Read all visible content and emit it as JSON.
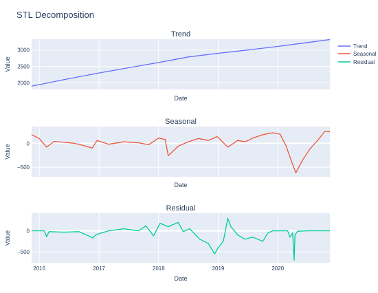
{
  "figure": {
    "title": "STL Decomposition"
  },
  "legend": {
    "placement": "top-right",
    "entries": [
      {
        "name": "Trend",
        "color": "#636efa"
      },
      {
        "name": "Seasonal",
        "color": "#ef553b"
      },
      {
        "name": "Residual",
        "color": "#00cc96"
      }
    ]
  },
  "chart_data": [
    {
      "type": "line",
      "title": "Trend",
      "xlabel": "Date",
      "ylabel": "Value",
      "xlim": [
        "2015-11-15",
        "2020-11-15"
      ],
      "ylim": [
        1800,
        3330
      ],
      "yticks": [
        2000,
        2500,
        3000
      ],
      "ytick_labels": [
        "2000",
        "2500",
        "3000"
      ],
      "grid": true,
      "series": [
        {
          "name": "Trend",
          "color": "#636efa",
          "x": [
            "2015-11-15",
            "2016-06-01",
            "2017-01-01",
            "2017-07-01",
            "2018-01-01",
            "2018-07-01",
            "2019-01-01",
            "2019-07-01",
            "2020-01-01",
            "2020-07-01",
            "2020-11-15"
          ],
          "y": [
            1900,
            2100,
            2300,
            2460,
            2620,
            2790,
            2900,
            3000,
            3110,
            3230,
            3320
          ]
        }
      ]
    },
    {
      "type": "line",
      "title": "Seasonal",
      "xlabel": "Date",
      "ylabel": "Value",
      "xlim": [
        "2015-11-15",
        "2020-11-15"
      ],
      "ylim": [
        -700,
        350
      ],
      "yticks": [
        -500,
        0
      ],
      "ytick_labels": [
        "−500",
        "0"
      ],
      "grid": true,
      "series": [
        {
          "name": "Seasonal",
          "color": "#ef553b",
          "x": [
            "2015-11-15",
            "2016-01-01",
            "2016-02-15",
            "2016-04-01",
            "2016-06-01",
            "2016-08-01",
            "2016-10-01",
            "2016-11-20",
            "2016-12-20",
            "2017-03-01",
            "2017-06-01",
            "2017-09-01",
            "2017-11-01",
            "2018-01-01",
            "2018-02-10",
            "2018-03-01",
            "2018-05-01",
            "2018-07-01",
            "2018-09-01",
            "2018-11-01",
            "2018-12-26",
            "2019-03-01",
            "2019-05-01",
            "2019-06-15",
            "2019-08-01",
            "2019-10-01",
            "2019-12-01",
            "2020-01-15",
            "2020-02-20",
            "2020-03-20",
            "2020-04-20",
            "2020-06-01",
            "2020-07-15",
            "2020-09-01",
            "2020-10-15",
            "2020-11-15"
          ],
          "y": [
            180,
            100,
            -80,
            40,
            20,
            0,
            -50,
            -100,
            60,
            -20,
            30,
            10,
            -30,
            110,
            80,
            -260,
            -60,
            30,
            100,
            60,
            140,
            -80,
            60,
            30,
            110,
            180,
            220,
            190,
            -50,
            -330,
            -620,
            -350,
            -120,
            60,
            250,
            240
          ]
        }
      ]
    },
    {
      "type": "line",
      "title": "Residual",
      "xlabel": "Date",
      "ylabel": "Value",
      "xlim": [
        "2015-11-15",
        "2020-11-15"
      ],
      "ylim": [
        -760,
        420
      ],
      "yticks": [
        -500,
        0
      ],
      "ytick_labels": [
        "−500",
        "0"
      ],
      "xticks": [
        "2016-01-01",
        "2017-01-01",
        "2018-01-01",
        "2019-01-01",
        "2020-01-01"
      ],
      "xtick_labels": [
        "2016",
        "2017",
        "2018",
        "2019",
        "2020"
      ],
      "grid": true,
      "series": [
        {
          "name": "Residual",
          "color": "#00cc96",
          "x": [
            "2015-11-15",
            "2016-02-01",
            "2016-02-15",
            "2016-03-01",
            "2016-06-01",
            "2016-09-01",
            "2016-11-25",
            "2016-12-10",
            "2017-01-15",
            "2017-03-01",
            "2017-06-01",
            "2017-09-01",
            "2017-10-15",
            "2017-12-01",
            "2018-01-10",
            "2018-03-01",
            "2018-05-01",
            "2018-06-01",
            "2018-07-10",
            "2018-09-10",
            "2018-11-01",
            "2018-12-10",
            "2019-01-01",
            "2019-02-01",
            "2019-03-01",
            "2019-03-20",
            "2019-05-01",
            "2019-06-15",
            "2019-08-01",
            "2019-10-01",
            "2019-11-01",
            "2019-12-01",
            "2020-02-01",
            "2020-03-01",
            "2020-03-15",
            "2020-04-01",
            "2020-04-10",
            "2020-04-15",
            "2020-05-01",
            "2020-07-01",
            "2020-09-01",
            "2020-11-15"
          ],
          "y": [
            0,
            0,
            -140,
            -20,
            -30,
            -20,
            -170,
            -100,
            -50,
            0,
            50,
            0,
            120,
            -120,
            180,
            100,
            200,
            -20,
            50,
            -200,
            -300,
            -550,
            -400,
            -250,
            300,
            100,
            -100,
            -200,
            -150,
            -250,
            -50,
            0,
            0,
            0,
            -150,
            -50,
            -700,
            -100,
            -10,
            0,
            0,
            0
          ]
        }
      ]
    }
  ]
}
